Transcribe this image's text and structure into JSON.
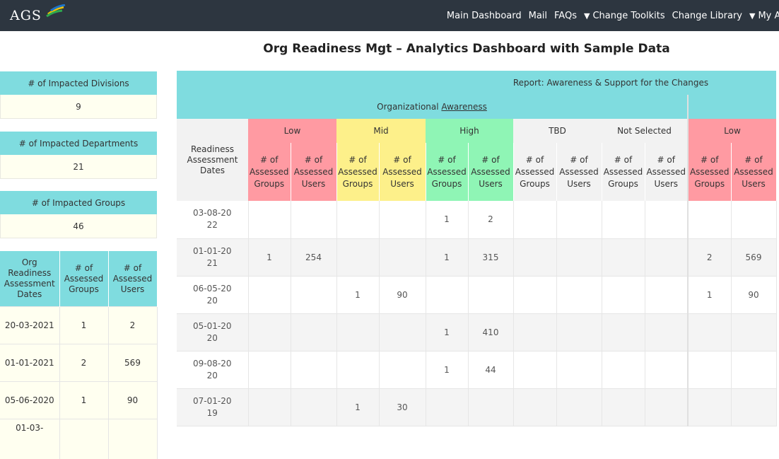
{
  "nav": {
    "logo": "AGS",
    "items": [
      "Main Dashboard",
      "Mail",
      "FAQs",
      "Change Toolkits",
      "Change Library",
      "My Account"
    ]
  },
  "title": "Org Readiness Mgt – Analytics Dashboard with Sample Data",
  "summary": [
    {
      "label": "# of Impacted Divisions",
      "value": "9"
    },
    {
      "label": "# of Impacted Departments",
      "value": "21"
    },
    {
      "label": "# of Impacted Groups",
      "value": "46"
    }
  ],
  "left_table": {
    "headers": [
      "Org Readiness Assessment Dates",
      "# of Assessed Groups",
      "# of Assessed Users"
    ],
    "rows": [
      [
        "20-03-2021",
        "1",
        "2"
      ],
      [
        "01-01-2021",
        "2",
        "569"
      ],
      [
        "05-06-2020",
        "1",
        "90"
      ],
      [
        "01-03-",
        "",
        ""
      ]
    ]
  },
  "report": {
    "title": "Report: Awareness & Support for the Changes",
    "section_prefix": "Organizational ",
    "section_link": "Awareness",
    "dates_header": "Readiness Assessment Dates",
    "levels": [
      "Low",
      "Mid",
      "High",
      "TBD",
      "Not Selected",
      "Low"
    ],
    "sub_headers": [
      "# of Assessed Groups",
      "# of Assessed Users"
    ],
    "rows": [
      [
        "03-08-2022",
        "",
        "",
        "",
        "",
        "1",
        "2",
        "",
        "",
        "",
        "",
        "",
        ""
      ],
      [
        "01-01-2021",
        "1",
        "254",
        "",
        "",
        "1",
        "315",
        "",
        "",
        "",
        "",
        "2",
        "569"
      ],
      [
        "06-05-2020",
        "",
        "",
        "1",
        "90",
        "",
        "",
        "",
        "",
        "",
        "",
        "1",
        "90"
      ],
      [
        "05-01-2020",
        "",
        "",
        "",
        "",
        "1",
        "410",
        "",
        "",
        "",
        "",
        "",
        ""
      ],
      [
        "09-08-2020",
        "",
        "",
        "",
        "",
        "1",
        "44",
        "",
        "",
        "",
        "",
        "",
        ""
      ],
      [
        "07-01-2019",
        "",
        "",
        "1",
        "30",
        "",
        "",
        "",
        "",
        "",
        "",
        "",
        ""
      ]
    ]
  }
}
